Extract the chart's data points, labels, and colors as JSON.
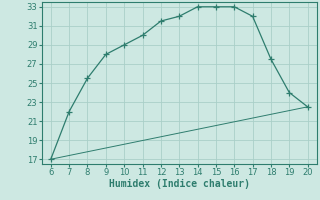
{
  "xlabel": "Humidex (Indice chaleur)",
  "line1_x": [
    6,
    7,
    8,
    9,
    10,
    11,
    12,
    13,
    14,
    15,
    16,
    17,
    18,
    19,
    20
  ],
  "line1_y": [
    17,
    22,
    25.5,
    28,
    29,
    30,
    31.5,
    32,
    33,
    33,
    33,
    32,
    27.5,
    24,
    22.5
  ],
  "line2_x": [
    6,
    20
  ],
  "line2_y": [
    17,
    22.5
  ],
  "line_color": "#2e7d6e",
  "bg_color": "#cde8e2",
  "grid_color": "#aacfc8",
  "xlim": [
    6,
    20
  ],
  "ylim": [
    17,
    33
  ],
  "xticks": [
    6,
    7,
    8,
    9,
    10,
    11,
    12,
    13,
    14,
    15,
    16,
    17,
    18,
    19,
    20
  ],
  "yticks": [
    17,
    19,
    21,
    23,
    25,
    27,
    29,
    31,
    33
  ],
  "tick_fontsize": 6,
  "xlabel_fontsize": 7
}
